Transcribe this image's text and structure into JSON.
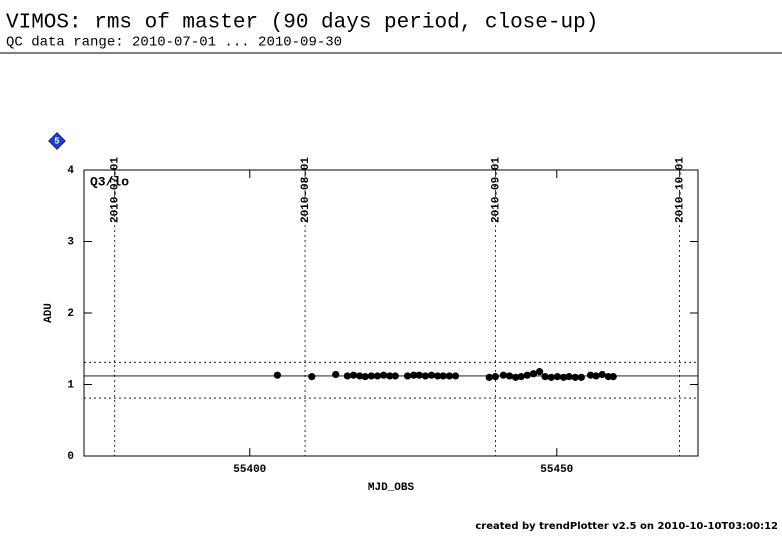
{
  "chart_data": {
    "type": "scatter",
    "title": "VIMOS: rms of master (90 days period, close-up)",
    "subtitle": "QC data range: 2010-07-01 ... 2010-09-30",
    "panel_label": "Q3/lo",
    "badge": "5",
    "x_label": "MJD_OBS",
    "y_label": "ADU",
    "footer": "created by trendPlotter v2.5 on 2010-10-10T03:00:12",
    "xlim": [
      55373,
      55473
    ],
    "ylim": [
      0,
      4
    ],
    "xticks": [
      55400,
      55450
    ],
    "yticks": [
      0,
      1,
      2,
      3,
      4
    ],
    "date_ticks": [
      {
        "value": 55378,
        "label": "2010-07-01"
      },
      {
        "value": 55409,
        "label": "2010-08-01"
      },
      {
        "value": 55440,
        "label": "2010-09-01"
      },
      {
        "value": 55470,
        "label": "2010-10-01"
      }
    ],
    "reference_line": 1.12,
    "limit_lines": [
      1.31,
      0.81
    ],
    "color": "#000000",
    "x": [
      55404.5,
      55410.1,
      55414.0,
      55415.9,
      55416.9,
      55417.9,
      55418.8,
      55419.8,
      55420.8,
      55421.8,
      55422.8,
      55423.7,
      55425.7,
      55426.7,
      55427.6,
      55428.6,
      55429.6,
      55430.6,
      55431.5,
      55432.5,
      55433.5,
      55439.0,
      55440.0,
      55441.3,
      55442.3,
      55443.3,
      55444.2,
      55445.2,
      55446.2,
      55447.2,
      55448.1,
      55449.1,
      55450.1,
      55451.1,
      55452.0,
      55453.0,
      55454.0,
      55455.5,
      55456.4,
      55457.4,
      55458.4,
      55459.2
    ],
    "values": [
      1.13,
      1.11,
      1.14,
      1.12,
      1.13,
      1.12,
      1.11,
      1.12,
      1.12,
      1.13,
      1.12,
      1.12,
      1.12,
      1.13,
      1.13,
      1.12,
      1.13,
      1.12,
      1.12,
      1.12,
      1.12,
      1.1,
      1.11,
      1.13,
      1.12,
      1.1,
      1.11,
      1.13,
      1.15,
      1.18,
      1.11,
      1.1,
      1.11,
      1.1,
      1.11,
      1.1,
      1.1,
      1.13,
      1.12,
      1.14,
      1.11,
      1.11
    ]
  }
}
